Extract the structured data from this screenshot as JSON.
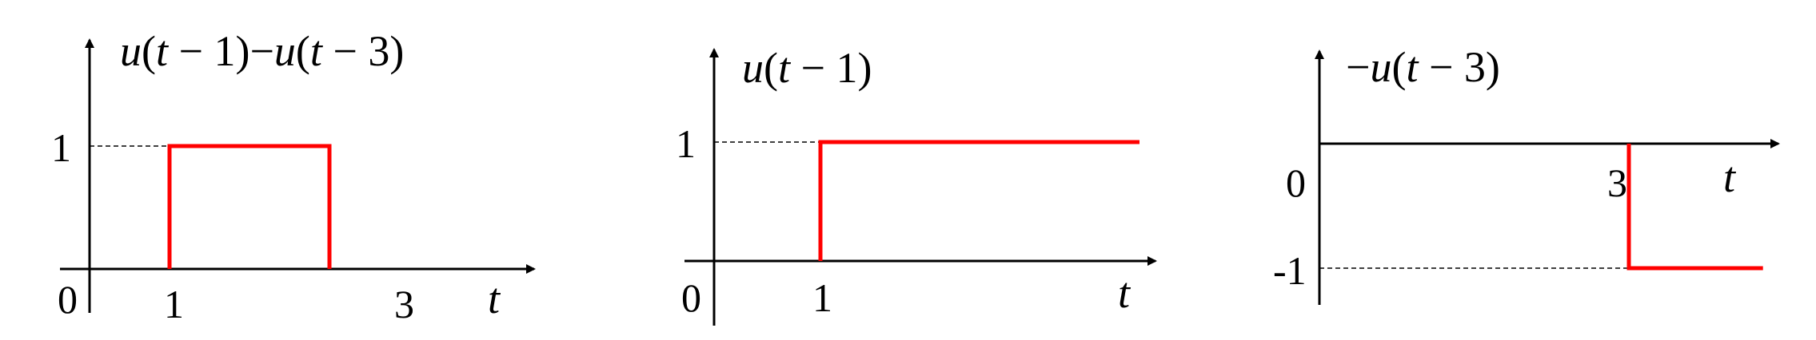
{
  "colors": {
    "signal": "#ff0000",
    "axis": "#000000",
    "guide": "#000000"
  },
  "chart_data": [
    {
      "type": "line",
      "title_parts": [
        "u",
        "(",
        "t",
        " − 1)",
        "−",
        "u",
        "(",
        "t",
        " − 3)"
      ],
      "title": "u(t−1)−u(t−3)",
      "xlabel": "t",
      "origin_label": "0",
      "x_ticks": [
        {
          "value": 1,
          "label": "1"
        },
        {
          "value": 3,
          "label": "3"
        }
      ],
      "y_ticks": [
        {
          "value": 1,
          "label": "1"
        }
      ],
      "xlim": [
        0,
        4.3
      ],
      "ylim": [
        0,
        1.4
      ],
      "series": [
        {
          "name": "u(t−1)−u(t−3)",
          "points": [
            [
              1,
              0
            ],
            [
              1,
              1
            ],
            [
              3,
              1
            ],
            [
              3,
              0
            ]
          ]
        }
      ]
    },
    {
      "type": "line",
      "title": "u(t−1)",
      "xlabel": "t",
      "origin_label": "0",
      "x_ticks": [
        {
          "value": 1,
          "label": "1"
        }
      ],
      "y_ticks": [
        {
          "value": 1,
          "label": "1"
        }
      ],
      "xlim": [
        0,
        4.3
      ],
      "ylim": [
        0,
        1.4
      ],
      "series": [
        {
          "name": "u(t−1)",
          "points": [
            [
              1,
              0
            ],
            [
              1,
              1
            ],
            [
              4,
              1
            ]
          ]
        }
      ]
    },
    {
      "type": "line",
      "title": "−u(t−3)",
      "xlabel": "t",
      "origin_label": "0",
      "x_ticks": [
        {
          "value": 3,
          "label": "3"
        }
      ],
      "y_ticks": [
        {
          "value": -1,
          "label": "-1"
        }
      ],
      "xlim": [
        0,
        4.3
      ],
      "ylim": [
        -1.4,
        0.6
      ],
      "series": [
        {
          "name": "−u(t−3)",
          "points": [
            [
              3,
              0
            ],
            [
              3,
              -1
            ],
            [
              4.3,
              -1
            ]
          ]
        }
      ]
    }
  ]
}
